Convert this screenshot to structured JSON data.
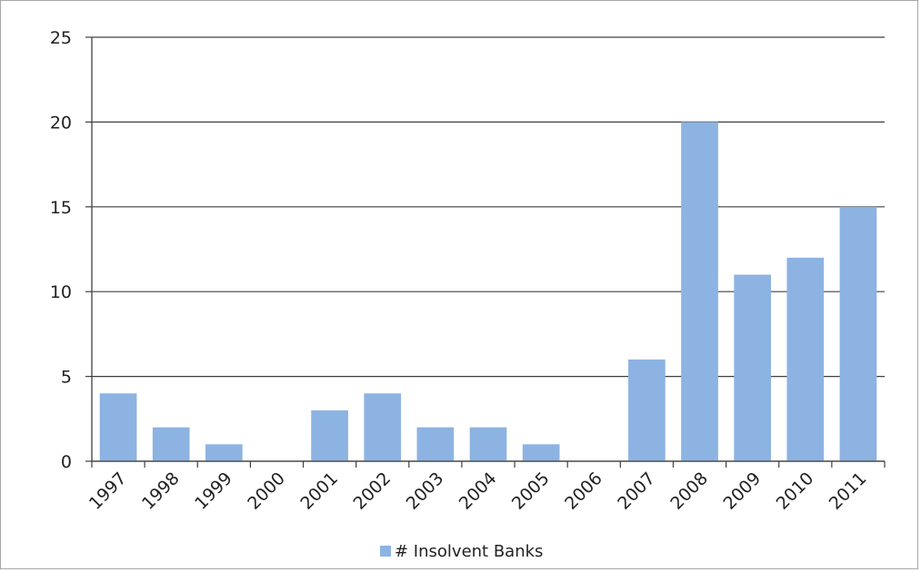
{
  "chart_data": {
    "type": "bar",
    "categories": [
      "1997",
      "1998",
      "1999",
      "2000",
      "2001",
      "2002",
      "2003",
      "2004",
      "2005",
      "2006",
      "2007",
      "2008",
      "2009",
      "2010",
      "2011"
    ],
    "series": [
      {
        "name": "# Insolvent Banks",
        "values": [
          4,
          2,
          1,
          0,
          3,
          4,
          2,
          2,
          1,
          0,
          6,
          20,
          11,
          12,
          15
        ]
      }
    ],
    "ylim": [
      0,
      25
    ],
    "yticks": [
      0,
      5,
      10,
      15,
      20,
      25
    ],
    "grid": true,
    "legend_position": "bottom",
    "bar_color": "#8db3e2",
    "axis_color": "#404040",
    "title": "",
    "xlabel": "",
    "ylabel": ""
  }
}
